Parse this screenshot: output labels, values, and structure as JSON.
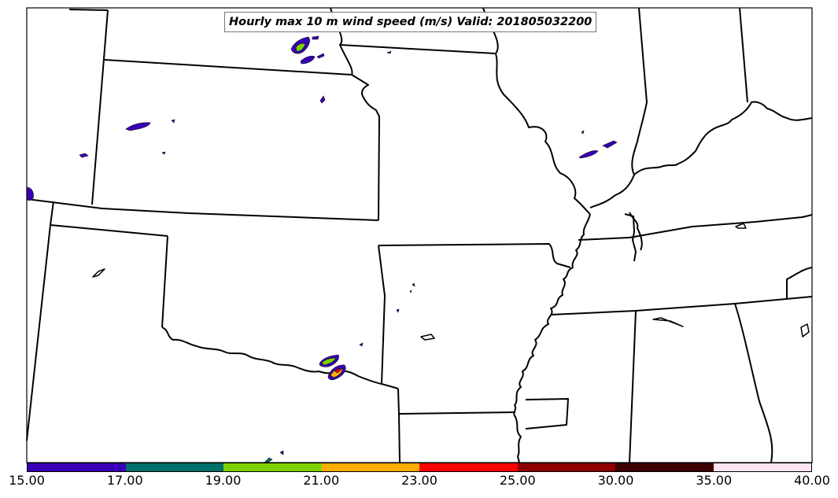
{
  "title": "Hourly max 10 m wind speed (m/s) Valid: 201805032200",
  "colorbar": {
    "ticks": [
      "15.00",
      "17.00",
      "19.00",
      "21.00",
      "23.00",
      "25.00",
      "30.00",
      "35.00",
      "40.00"
    ],
    "colors": [
      "#3a00b8",
      "#00706a",
      "#7ed100",
      "#ffae00",
      "#ff0000",
      "#8c0000",
      "#3c0000",
      "#ffe4f4"
    ]
  }
}
